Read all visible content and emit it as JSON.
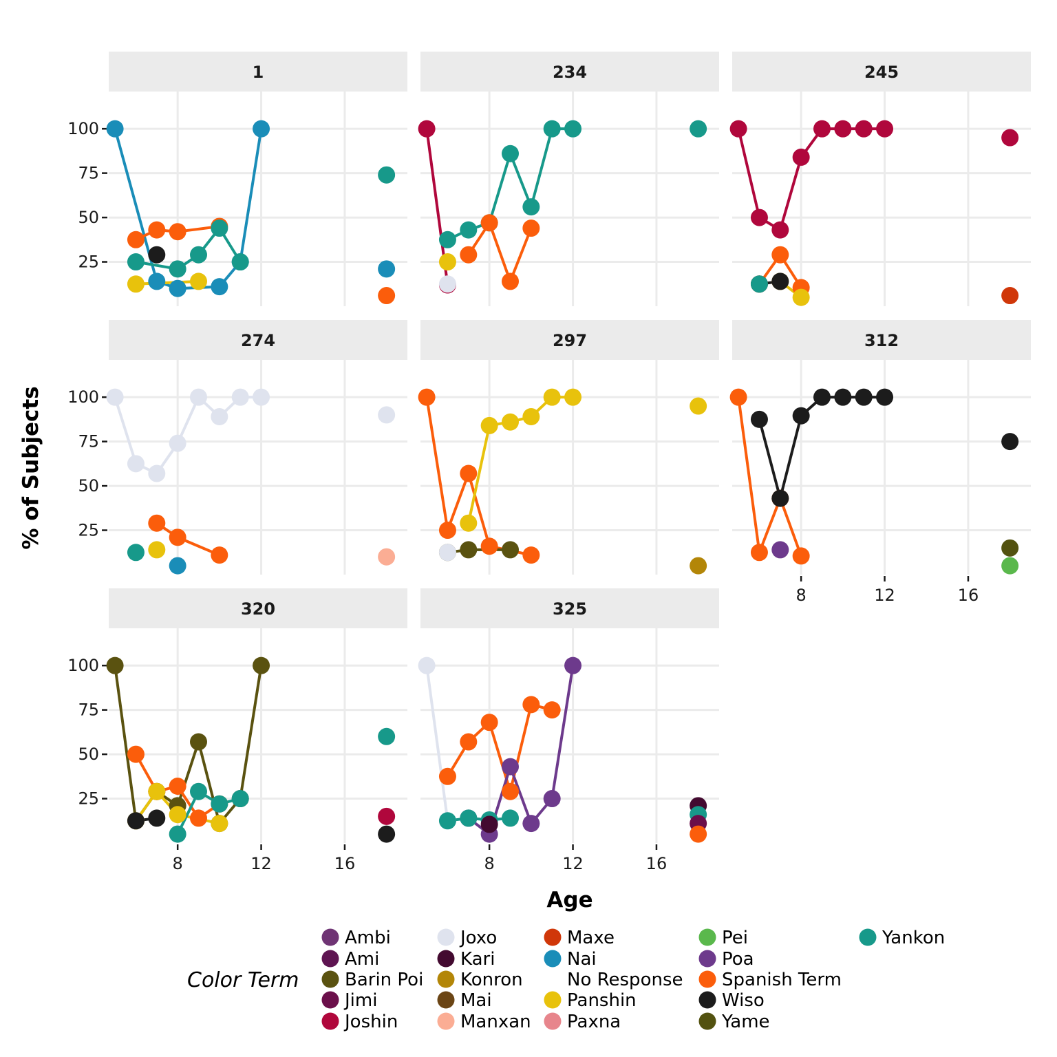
{
  "chart_data": {
    "type": "line",
    "xlabel": "Age",
    "ylabel": "% of Subjects",
    "xlim": [
      4.7,
      19.0
    ],
    "ylim": [
      0,
      121
    ],
    "x_ticks": [
      8,
      12,
      16
    ],
    "y_ticks": [
      25,
      50,
      75,
      100
    ],
    "adult_x": 18,
    "legend": {
      "title": "Color Term",
      "position": "bottom",
      "items": [
        {
          "term": "Ambi",
          "color": "#6f3474"
        },
        {
          "term": "Ami",
          "color": "#5e1451"
        },
        {
          "term": "Barin Poi",
          "color": "#5a5210"
        },
        {
          "term": "Jimi",
          "color": "#6b0f4a"
        },
        {
          "term": "Joshin",
          "color": "#b0073c"
        },
        {
          "term": "Joxo",
          "color": "#dfe3ee"
        },
        {
          "term": "Kari",
          "color": "#430a30"
        },
        {
          "term": "Konron",
          "color": "#b38608"
        },
        {
          "term": "Mai",
          "color": "#6b4515"
        },
        {
          "term": "Manxan",
          "color": "#fbad94"
        },
        {
          "term": "Maxe",
          "color": "#d03709"
        },
        {
          "term": "Nai",
          "color": "#1a8db8"
        },
        {
          "term": "No Response",
          "color": "#ffffff"
        },
        {
          "term": "Panshin",
          "color": "#e8c20c"
        },
        {
          "term": "Paxna",
          "color": "#e7858c"
        },
        {
          "term": "Pei",
          "color": "#5ab84c"
        },
        {
          "term": "Poa",
          "color": "#6d3a8c"
        },
        {
          "term": "Spanish Term",
          "color": "#fb5d0b"
        },
        {
          "term": "Wiso",
          "color": "#1c1c1c"
        },
        {
          "term": "Yame",
          "color": "#535210"
        },
        {
          "term": "Yankon",
          "color": "#17998a"
        }
      ]
    },
    "panels": [
      {
        "label": "1",
        "series": [
          {
            "term": "Nai",
            "x": [
              5,
              7,
              8,
              10,
              11,
              12
            ],
            "y": [
              100,
              14,
              10,
              11,
              25,
              100
            ]
          },
          {
            "term": "Spanish Term",
            "x": [
              6,
              7,
              8,
              10
            ],
            "y": [
              37.5,
              43,
              42,
              45
            ]
          },
          {
            "term": "Yankon",
            "x": [
              6,
              8,
              9,
              10,
              11
            ],
            "y": [
              25,
              21,
              29,
              44,
              25
            ]
          },
          {
            "term": "Wiso",
            "x": [
              7
            ],
            "y": [
              29
            ]
          },
          {
            "term": "Panshin",
            "x": [
              6,
              9
            ],
            "y": [
              12.5,
              14
            ]
          }
        ],
        "adult": [
          {
            "term": "Yankon",
            "y": 74
          },
          {
            "term": "Nai",
            "y": 21
          },
          {
            "term": "Spanish Term",
            "y": 6
          }
        ]
      },
      {
        "label": "234",
        "series": [
          {
            "term": "Joshin",
            "x": [
              5,
              6
            ],
            "y": [
              100,
              12
            ]
          },
          {
            "term": "Yankon",
            "x": [
              6,
              7,
              8,
              9,
              10,
              11,
              12
            ],
            "y": [
              37.5,
              43,
              47,
              86,
              56,
              100,
              100
            ]
          },
          {
            "term": "Spanish Term",
            "x": [
              7,
              8,
              9,
              10
            ],
            "y": [
              29,
              47,
              14,
              44
            ]
          },
          {
            "term": "Panshin",
            "x": [
              6
            ],
            "y": [
              25
            ]
          },
          {
            "term": "Joxo",
            "x": [
              6
            ],
            "y": [
              12.5
            ]
          }
        ],
        "adult": [
          {
            "term": "Yankon",
            "y": 100
          }
        ]
      },
      {
        "label": "245",
        "series": [
          {
            "term": "Joshin",
            "x": [
              5,
              6,
              7,
              8,
              9,
              10,
              11,
              12
            ],
            "y": [
              100,
              50,
              43,
              84,
              100,
              100,
              100,
              100
            ]
          },
          {
            "term": "Spanish Term",
            "x": [
              6,
              7,
              8
            ],
            "y": [
              12.5,
              29,
              10.5
            ]
          },
          {
            "term": "Panshin",
            "x": [
              7,
              8
            ],
            "y": [
              14,
              5
            ]
          },
          {
            "term": "Wiso",
            "x": [
              6,
              7
            ],
            "y": [
              12.5,
              14
            ]
          },
          {
            "term": "Yankon",
            "x": [
              6
            ],
            "y": [
              12.5
            ]
          }
        ],
        "adult": [
          {
            "term": "Joshin",
            "y": 95
          },
          {
            "term": "Maxe",
            "y": 6
          }
        ]
      },
      {
        "label": "274",
        "series": [
          {
            "term": "Joxo",
            "x": [
              5,
              6,
              7,
              8,
              9,
              10,
              11,
              12
            ],
            "y": [
              100,
              62.5,
              57,
              74,
              100,
              89,
              100,
              100
            ]
          },
          {
            "term": "Spanish Term",
            "x": [
              7,
              8,
              10
            ],
            "y": [
              29,
              21,
              11
            ]
          },
          {
            "term": "Yankon",
            "x": [
              6
            ],
            "y": [
              12.5
            ]
          },
          {
            "term": "Panshin",
            "x": [
              7
            ],
            "y": [
              14
            ]
          },
          {
            "term": "Nai",
            "x": [
              8
            ],
            "y": [
              5
            ]
          }
        ],
        "adult": [
          {
            "term": "Joxo",
            "y": 90
          },
          {
            "term": "Manxan",
            "y": 10
          }
        ]
      },
      {
        "label": "297",
        "series": [
          {
            "term": "Spanish Term",
            "x": [
              5,
              6,
              7,
              8,
              10
            ],
            "y": [
              100,
              25,
              57,
              16,
              11
            ]
          },
          {
            "term": "Panshin",
            "x": [
              7,
              8,
              9,
              10,
              11,
              12
            ],
            "y": [
              29,
              84,
              86,
              89,
              100,
              100
            ]
          },
          {
            "term": "Barin Poi",
            "x": [
              6,
              7,
              9
            ],
            "y": [
              12.5,
              14,
              14
            ]
          },
          {
            "term": "Joxo",
            "x": [
              6
            ],
            "y": [
              12.5
            ]
          }
        ],
        "adult": [
          {
            "term": "Panshin",
            "y": 95
          },
          {
            "term": "Konron",
            "y": 5
          }
        ]
      },
      {
        "label": "312",
        "series": [
          {
            "term": "Spanish Term",
            "x": [
              5,
              6,
              7,
              8
            ],
            "y": [
              100,
              12.5,
              43,
              10.5
            ]
          },
          {
            "term": "Wiso",
            "x": [
              6,
              7,
              8,
              9,
              10,
              11,
              12
            ],
            "y": [
              87.5,
              43,
              89.5,
              100,
              100,
              100,
              100
            ]
          },
          {
            "term": "Poa",
            "x": [
              7
            ],
            "y": [
              14
            ]
          }
        ],
        "adult": [
          {
            "term": "Wiso",
            "y": 75
          },
          {
            "term": "Yame",
            "y": 15
          },
          {
            "term": "Pei",
            "y": 5
          }
        ]
      },
      {
        "label": "320",
        "series": [
          {
            "term": "Barin Poi",
            "x": [
              5,
              6,
              7,
              8,
              9,
              10,
              11,
              12
            ],
            "y": [
              100,
              12.5,
              29,
              21,
              57,
              11,
              25,
              100
            ]
          },
          {
            "term": "Spanish Term",
            "x": [
              6,
              7,
              8,
              9,
              10
            ],
            "y": [
              50,
              29,
              32,
              14,
              22
            ]
          },
          {
            "term": "Panshin",
            "x": [
              6,
              7,
              8,
              10
            ],
            "y": [
              12.5,
              29,
              16,
              11
            ]
          },
          {
            "term": "Yankon",
            "x": [
              8,
              9,
              10,
              11
            ],
            "y": [
              5,
              29,
              22,
              25
            ]
          },
          {
            "term": "Wiso",
            "x": [
              6,
              7
            ],
            "y": [
              12.5,
              14
            ]
          }
        ],
        "adult": [
          {
            "term": "Yankon",
            "y": 60
          },
          {
            "term": "Joshin",
            "y": 15
          },
          {
            "term": "Wiso",
            "y": 5
          }
        ]
      },
      {
        "label": "325",
        "series": [
          {
            "term": "Joxo",
            "x": [
              5,
              6
            ],
            "y": [
              100,
              12.5
            ]
          },
          {
            "term": "Spanish Term",
            "x": [
              6,
              7,
              8,
              9,
              10,
              11
            ],
            "y": [
              37.5,
              57,
              68,
              29,
              78,
              75
            ]
          },
          {
            "term": "Poa",
            "x": [
              7,
              8,
              9,
              10,
              11,
              12
            ],
            "y": [
              14,
              5,
              43,
              11,
              25,
              100
            ]
          },
          {
            "term": "Yankon",
            "x": [
              6,
              7,
              8,
              9
            ],
            "y": [
              12.5,
              14,
              13,
              14
            ]
          },
          {
            "term": "Kari",
            "x": [
              8
            ],
            "y": [
              10.5
            ]
          }
        ],
        "adult": [
          {
            "term": "Kari",
            "y": 21
          },
          {
            "term": "Yankon",
            "y": 16
          },
          {
            "term": "Jimi",
            "y": 11
          },
          {
            "term": "Spanish Term",
            "y": 5
          }
        ]
      }
    ]
  }
}
